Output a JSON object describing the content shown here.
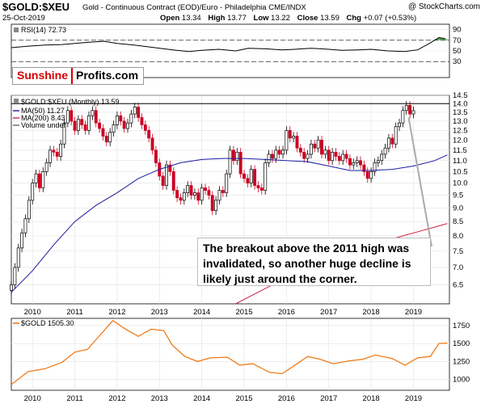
{
  "header": {
    "title": "$GOLD:$XEU",
    "subtitle": "Gold - Continuous Contract (EOD)/Euro - Philadelphia  CME/INDX",
    "brand": "@ StockCharts.com",
    "date": "25-Oct-2019",
    "open_label": "Open",
    "open": "13.34",
    "high_label": "High",
    "high": "13.77",
    "low_label": "Low",
    "low": "13.22",
    "close_label": "Close",
    "close": "13.59",
    "chg_label": "Chg",
    "chg": "+0.07 (+0.53%)"
  },
  "logo": {
    "part1": "Sunshine",
    "part2": "Profits.com"
  },
  "annotation": "The breakout above the 2011 high was invalidated, so another huge decline is likely just around the corner.",
  "colors": {
    "up": "#000000",
    "down": "#cc0022",
    "ma50": "#1a1aa0",
    "ma200": "#cc2040",
    "rsi": "#000000",
    "rsi_fill": "#4a9a4a",
    "gold": "#f07b18",
    "resistance": "#000000"
  },
  "chart_data": [
    {
      "type": "line",
      "name": "rsi",
      "label": "RSI(14) 72.73",
      "ylim": [
        0,
        100
      ],
      "yticks": [
        30,
        50,
        70,
        90
      ],
      "levels": [
        70,
        30
      ],
      "x": [
        2009.5,
        2009.9,
        2010.3,
        2010.7,
        2011.0,
        2011.3,
        2011.7,
        2012.0,
        2012.4,
        2012.8,
        2013.1,
        2013.4,
        2013.7,
        2014.0,
        2014.4,
        2014.8,
        2015.1,
        2015.5,
        2015.9,
        2016.2,
        2016.6,
        2017.0,
        2017.3,
        2017.7,
        2018.0,
        2018.4,
        2018.8,
        2019.1,
        2019.4,
        2019.6,
        2019.75
      ],
      "values": [
        56,
        59,
        61,
        62,
        64,
        66,
        68,
        64,
        61,
        57,
        54,
        51,
        49,
        51,
        53,
        50,
        55,
        54,
        52,
        53,
        55,
        53,
        51,
        52,
        53,
        50,
        49,
        52,
        65,
        75,
        73
      ]
    },
    {
      "type": "candlestick",
      "name": "price",
      "title": "$GOLD:$XEU (Monthly) 13.59",
      "legend": [
        "MA(50) 11.27",
        "MA(200) 8.43",
        "Volume undef"
      ],
      "ylim": [
        6.0,
        14.5
      ],
      "yticks": [
        6.5,
        7.0,
        7.5,
        8.0,
        8.5,
        9.0,
        9.5,
        10.0,
        10.5,
        11.0,
        11.5,
        12.0,
        12.5,
        13.0,
        13.5,
        14.0,
        14.5
      ],
      "xticks": [
        "2010",
        "2011",
        "2012",
        "2013",
        "2014",
        "2015",
        "2016",
        "2017",
        "2018",
        "2019"
      ],
      "xtick_years": [
        2010,
        2011,
        2012,
        2013,
        2014,
        2015,
        2016,
        2017,
        2018,
        2019
      ],
      "resistance": 14.0,
      "start": 2009.5,
      "closes": [
        6.5,
        7.0,
        7.6,
        8.1,
        8.6,
        9.3,
        10.0,
        10.4,
        9.8,
        10.5,
        10.9,
        11.5,
        11.4,
        11.2,
        11.8,
        12.9,
        13.6,
        13.0,
        12.5,
        13.1,
        12.8,
        12.5,
        13.3,
        13.6,
        12.9,
        12.6,
        12.2,
        11.9,
        12.4,
        12.8,
        13.3,
        13.0,
        12.6,
        12.9,
        13.4,
        13.8,
        13.2,
        12.8,
        12.5,
        12.1,
        11.5,
        10.9,
        10.3,
        9.9,
        10.8,
        10.5,
        9.7,
        9.4,
        9.3,
        9.6,
        9.9,
        9.5,
        9.6,
        9.3,
        9.8,
        9.7,
        9.5,
        8.9,
        9.3,
        9.7,
        9.6,
        10.4,
        11.5,
        11.0,
        11.4,
        10.4,
        10.2,
        10.0,
        10.6,
        9.9,
        9.8,
        9.7,
        10.9,
        11.3,
        11.1,
        11.5,
        11.3,
        11.5,
        12.5,
        12.1,
        12.2,
        11.6,
        11.4,
        11.1,
        11.3,
        11.8,
        11.6,
        12.0,
        11.3,
        11.5,
        11.0,
        11.4,
        11.2,
        11.0,
        11.3,
        11.1,
        10.8,
        10.9,
        11.0,
        10.8,
        10.5,
        10.2,
        10.5,
        10.9,
        11.0,
        11.3,
        11.6,
        12.1,
        11.8,
        12.7,
        12.9,
        13.6,
        13.9,
        13.4,
        13.59
      ],
      "ma50": [
        [
          2009.5,
          6.3
        ],
        [
          2010.0,
          6.9
        ],
        [
          2010.5,
          7.7
        ],
        [
          2011.0,
          8.5
        ],
        [
          2011.5,
          9.1
        ],
        [
          2012.0,
          9.6
        ],
        [
          2012.5,
          10.2
        ],
        [
          2013.0,
          10.6
        ],
        [
          2013.5,
          10.9
        ],
        [
          2014.0,
          11.05
        ],
        [
          2014.5,
          11.1
        ],
        [
          2015.0,
          11.1
        ],
        [
          2015.5,
          11.05
        ],
        [
          2016.0,
          11.0
        ],
        [
          2016.5,
          10.95
        ],
        [
          2017.0,
          10.75
        ],
        [
          2017.5,
          10.55
        ],
        [
          2018.0,
          10.55
        ],
        [
          2018.5,
          10.6
        ],
        [
          2019.0,
          10.75
        ],
        [
          2019.5,
          11.0
        ],
        [
          2019.8,
          11.27
        ]
      ],
      "ma200": [
        [
          2014.8,
          6.0
        ],
        [
          2015.5,
          6.4
        ],
        [
          2016.0,
          6.7
        ],
        [
          2016.5,
          6.95
        ],
        [
          2017.0,
          7.2
        ],
        [
          2017.5,
          7.45
        ],
        [
          2018.0,
          7.7
        ],
        [
          2018.5,
          7.9
        ],
        [
          2019.0,
          8.1
        ],
        [
          2019.5,
          8.3
        ],
        [
          2019.8,
          8.43
        ]
      ]
    },
    {
      "type": "line",
      "name": "gold_usd",
      "label": "$GOLD 1505.30",
      "ylim": [
        850,
        1850
      ],
      "yticks": [
        1000,
        1250,
        1500,
        1750
      ],
      "x": [
        2009.5,
        2009.9,
        2010.3,
        2010.7,
        2011.0,
        2011.3,
        2011.6,
        2011.9,
        2012.2,
        2012.5,
        2012.8,
        2013.1,
        2013.3,
        2013.6,
        2013.9,
        2014.2,
        2014.6,
        2014.9,
        2015.2,
        2015.6,
        2015.9,
        2016.2,
        2016.5,
        2016.8,
        2017.1,
        2017.5,
        2017.8,
        2018.1,
        2018.5,
        2018.8,
        2019.1,
        2019.4,
        2019.6,
        2019.8
      ],
      "values": [
        930,
        1110,
        1150,
        1240,
        1380,
        1420,
        1620,
        1820,
        1700,
        1600,
        1700,
        1680,
        1480,
        1320,
        1250,
        1300,
        1310,
        1200,
        1220,
        1100,
        1080,
        1200,
        1320,
        1280,
        1220,
        1260,
        1280,
        1340,
        1290,
        1200,
        1300,
        1320,
        1500,
        1505
      ]
    }
  ]
}
